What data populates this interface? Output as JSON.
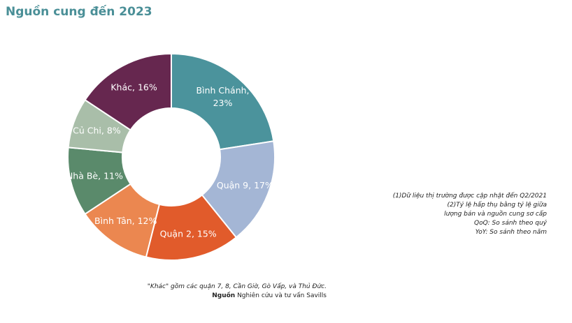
{
  "title": "Nguồn cung đến 2023",
  "chart_data": {
    "type": "pie",
    "subtype": "donut",
    "title": "Nguồn cung đến 2023",
    "slices": [
      {
        "label": "Bình Chánh",
        "value": 23,
        "color": "#4b939c",
        "text": [
          "Bình Chánh,",
          "23%"
        ]
      },
      {
        "label": "Quận 9",
        "value": 17,
        "color": "#a4b6d5",
        "text": [
          "Quận 9, 17%"
        ]
      },
      {
        "label": "Quận 2",
        "value": 15,
        "color": "#e15b2b",
        "text": [
          "Quận 2, 15%"
        ]
      },
      {
        "label": "Bình Tân",
        "value": 12,
        "color": "#eb8750",
        "text": [
          "Bình Tân, 12%"
        ]
      },
      {
        "label": "Nhà Bè",
        "value": 11,
        "color": "#5a8a6b",
        "text": [
          "Nhà Bè, 11%"
        ]
      },
      {
        "label": "Củ Chi",
        "value": 8,
        "color": "#a9bea9",
        "text": [
          "Củ Chi, 8%"
        ]
      },
      {
        "label": "Khác",
        "value": 16,
        "color": "#66274f",
        "text": [
          "Khác, 16%"
        ]
      }
    ]
  },
  "notes": [
    "(1)Dữ liệu thị trường được cập nhật đến Q2/2021",
    "(2)Tỷ lệ hấp thụ bằng tỷ lệ giữa lượng bán và nguồn cung sơ cấp",
    "QoQ: So sánh theo quý",
    "YoY: So sánh theo năm"
  ],
  "footnote": "\"Khác\" gồm các quận 7, 8, Cần Giờ, Gò Vấp, và Thủ Đức.",
  "source_label": "Nguồn",
  "source_text": "Nghiên cứu và tư vấn Savills"
}
